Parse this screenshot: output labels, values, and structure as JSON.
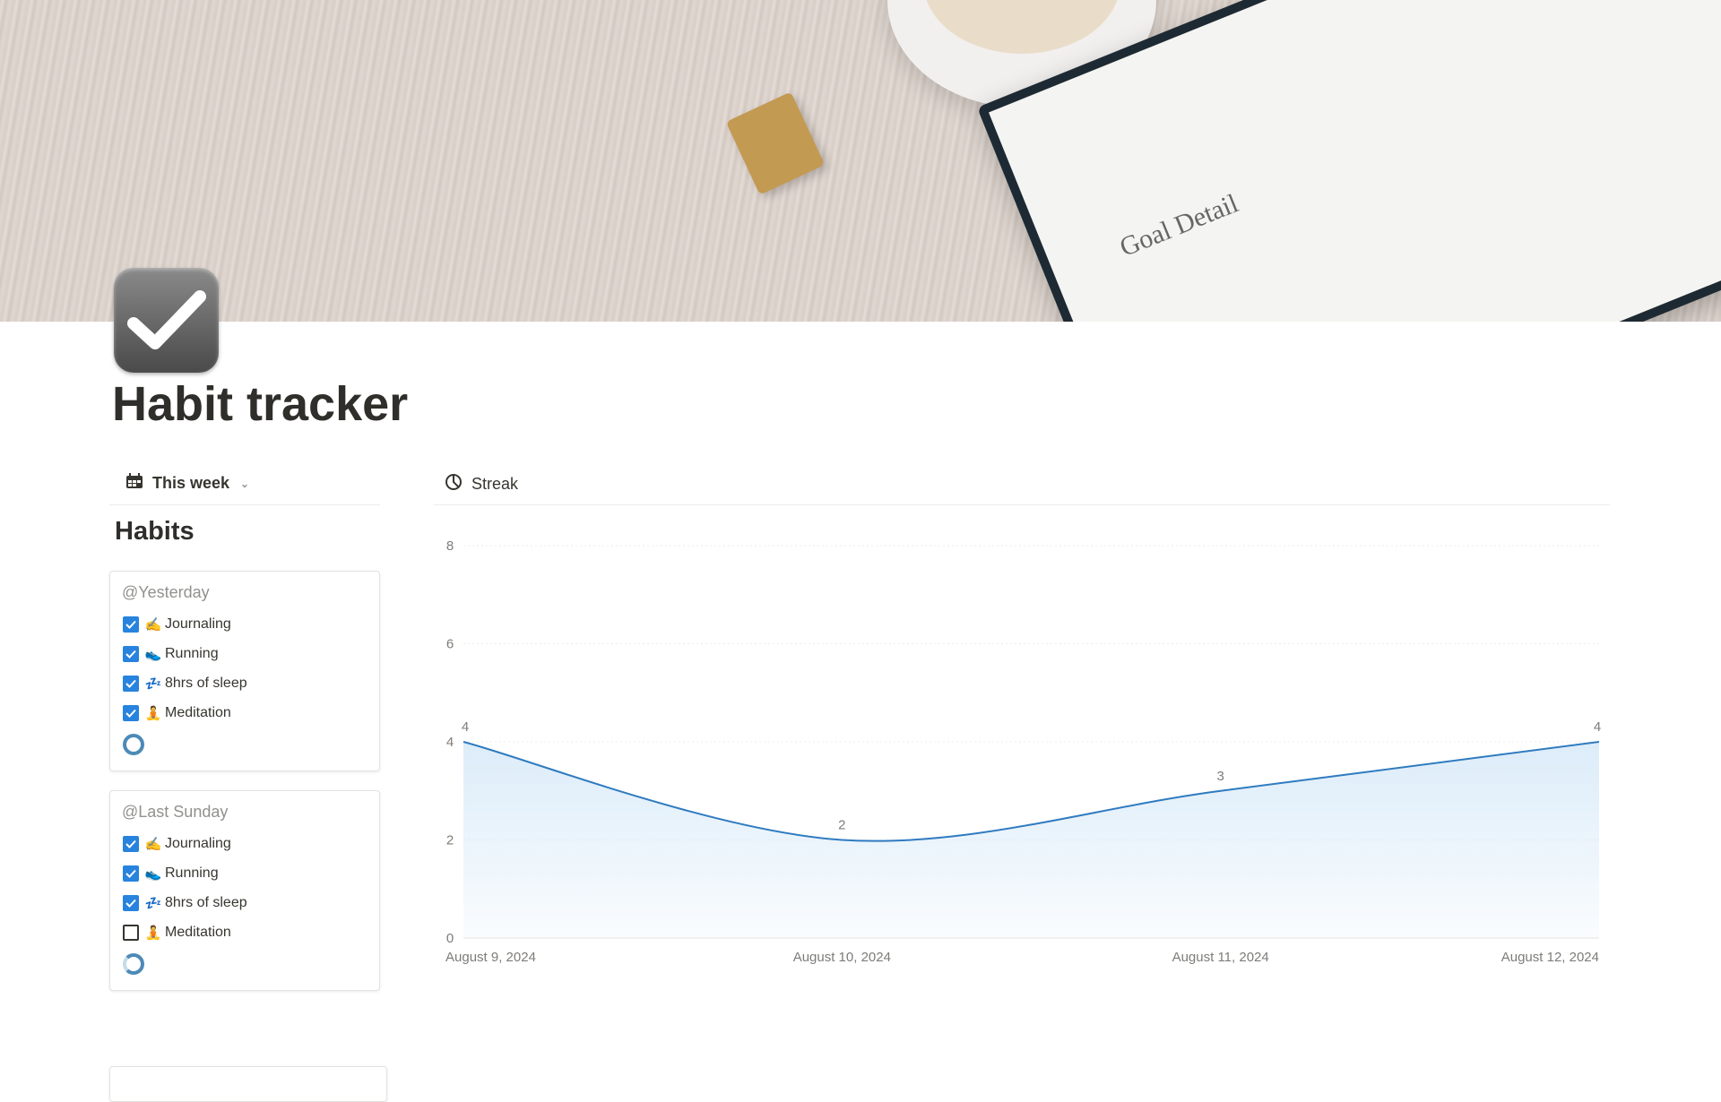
{
  "page": {
    "title": "Habit tracker",
    "icon": "checkmark-icon",
    "cover": {
      "notebook_text": "Goal Detail"
    }
  },
  "left_view": {
    "tab_label": "This week",
    "tab_icon": "calendar-icon",
    "heading": "Habits",
    "cards": [
      {
        "title": "@Yesterday",
        "progress": 1.0,
        "items": [
          {
            "emoji": "✍️",
            "label": "Journaling",
            "checked": true
          },
          {
            "emoji": "👟",
            "label": "Running",
            "checked": true
          },
          {
            "emoji": "💤",
            "label": "8hrs of sleep",
            "checked": true
          },
          {
            "emoji": "🧘",
            "label": "Meditation",
            "checked": true
          }
        ]
      },
      {
        "title": "@Last Sunday",
        "progress": 0.75,
        "items": [
          {
            "emoji": "✍️",
            "label": "Journaling",
            "checked": true
          },
          {
            "emoji": "👟",
            "label": "Running",
            "checked": true
          },
          {
            "emoji": "💤",
            "label": "8hrs of sleep",
            "checked": true
          },
          {
            "emoji": "🧘",
            "label": "Meditation",
            "checked": false
          }
        ]
      }
    ]
  },
  "right_view": {
    "tab_label": "Streak",
    "tab_icon": "pie-chart-icon"
  },
  "chart_data": {
    "type": "area",
    "categories": [
      "August 9, 2024",
      "August 10, 2024",
      "August 11, 2024",
      "August 12, 2024"
    ],
    "values": [
      4,
      2,
      3,
      4
    ],
    "data_labels": [
      "4",
      "2",
      "3",
      "4"
    ],
    "ylim": [
      0,
      8
    ],
    "yticks": [
      "0",
      "2",
      "4",
      "6",
      "8"
    ],
    "grid": true,
    "smooth": true,
    "line_color": "#2f7bc0",
    "fill_color": "#dcecf9"
  },
  "colors": {
    "checkbox": "#2783de",
    "progress_ring": "#4d8ab8"
  }
}
